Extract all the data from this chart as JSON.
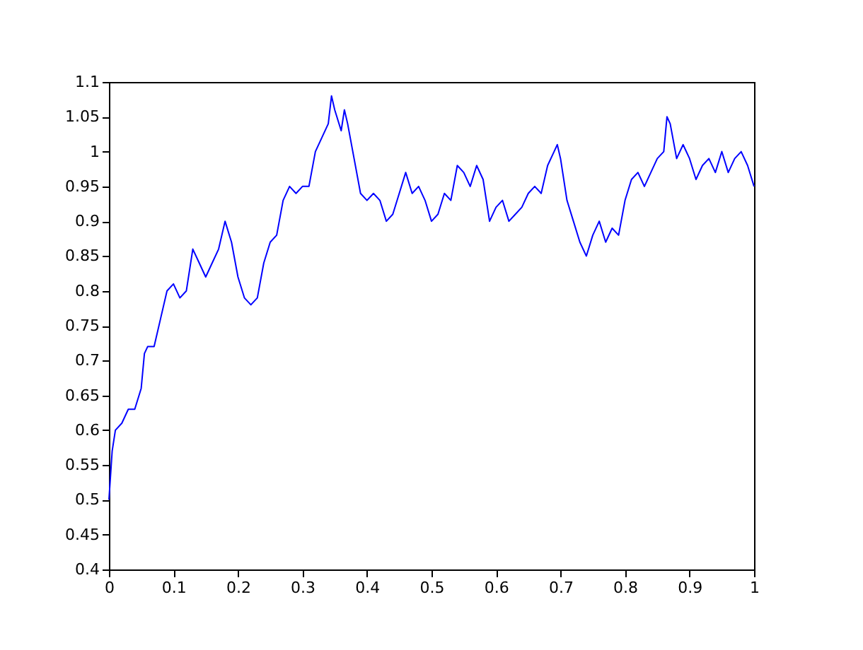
{
  "chart_data": {
    "type": "line",
    "x": [
      0,
      0.005,
      0.01,
      0.02,
      0.03,
      0.04,
      0.05,
      0.055,
      0.06,
      0.07,
      0.08,
      0.09,
      0.1,
      0.11,
      0.12,
      0.13,
      0.14,
      0.15,
      0.16,
      0.17,
      0.18,
      0.19,
      0.2,
      0.21,
      0.22,
      0.23,
      0.24,
      0.25,
      0.26,
      0.27,
      0.28,
      0.29,
      0.3,
      0.31,
      0.32,
      0.33,
      0.34,
      0.345,
      0.35,
      0.36,
      0.365,
      0.37,
      0.38,
      0.39,
      0.4,
      0.41,
      0.42,
      0.43,
      0.44,
      0.45,
      0.46,
      0.47,
      0.48,
      0.49,
      0.5,
      0.51,
      0.52,
      0.53,
      0.54,
      0.55,
      0.56,
      0.57,
      0.58,
      0.59,
      0.6,
      0.61,
      0.62,
      0.63,
      0.64,
      0.65,
      0.66,
      0.67,
      0.68,
      0.69,
      0.695,
      0.7,
      0.71,
      0.72,
      0.73,
      0.74,
      0.75,
      0.76,
      0.77,
      0.78,
      0.79,
      0.8,
      0.81,
      0.82,
      0.83,
      0.84,
      0.85,
      0.86,
      0.865,
      0.87,
      0.88,
      0.89,
      0.9,
      0.91,
      0.92,
      0.93,
      0.94,
      0.95,
      0.96,
      0.97,
      0.98,
      0.99,
      1
    ],
    "series": [
      {
        "color": "#0000ff",
        "values": [
          0.5,
          0.57,
          0.6,
          0.61,
          0.63,
          0.63,
          0.66,
          0.71,
          0.72,
          0.72,
          0.76,
          0.8,
          0.81,
          0.79,
          0.8,
          0.86,
          0.84,
          0.82,
          0.84,
          0.86,
          0.9,
          0.87,
          0.82,
          0.79,
          0.78,
          0.79,
          0.84,
          0.87,
          0.88,
          0.93,
          0.95,
          0.94,
          0.95,
          0.95,
          1.0,
          1.02,
          1.04,
          1.08,
          1.06,
          1.03,
          1.06,
          1.04,
          0.99,
          0.94,
          0.93,
          0.94,
          0.93,
          0.9,
          0.91,
          0.94,
          0.97,
          0.94,
          0.95,
          0.93,
          0.9,
          0.91,
          0.94,
          0.93,
          0.98,
          0.97,
          0.95,
          0.98,
          0.96,
          0.9,
          0.92,
          0.93,
          0.9,
          0.91,
          0.92,
          0.94,
          0.95,
          0.94,
          0.98,
          1.0,
          1.01,
          0.99,
          0.93,
          0.9,
          0.87,
          0.85,
          0.88,
          0.9,
          0.87,
          0.89,
          0.88,
          0.93,
          0.96,
          0.97,
          0.95,
          0.97,
          0.99,
          1.0,
          1.05,
          1.04,
          0.99,
          1.01,
          0.99,
          0.96,
          0.98,
          0.99,
          0.97,
          1.0,
          0.97,
          0.99,
          1.0,
          0.98,
          0.95
        ]
      }
    ],
    "xlim": [
      0,
      1
    ],
    "xticks": [
      0,
      0.1,
      0.2,
      0.3,
      0.4,
      0.5,
      0.6,
      0.7,
      0.8,
      0.9,
      1
    ],
    "ylim": [
      0.4,
      1.1
    ],
    "yticks": [
      0.4,
      0.45,
      0.5,
      0.55,
      0.6,
      0.65,
      0.7,
      0.75,
      0.8,
      0.85,
      0.9,
      0.95,
      1,
      1.05,
      1.1
    ],
    "grid": false
  }
}
